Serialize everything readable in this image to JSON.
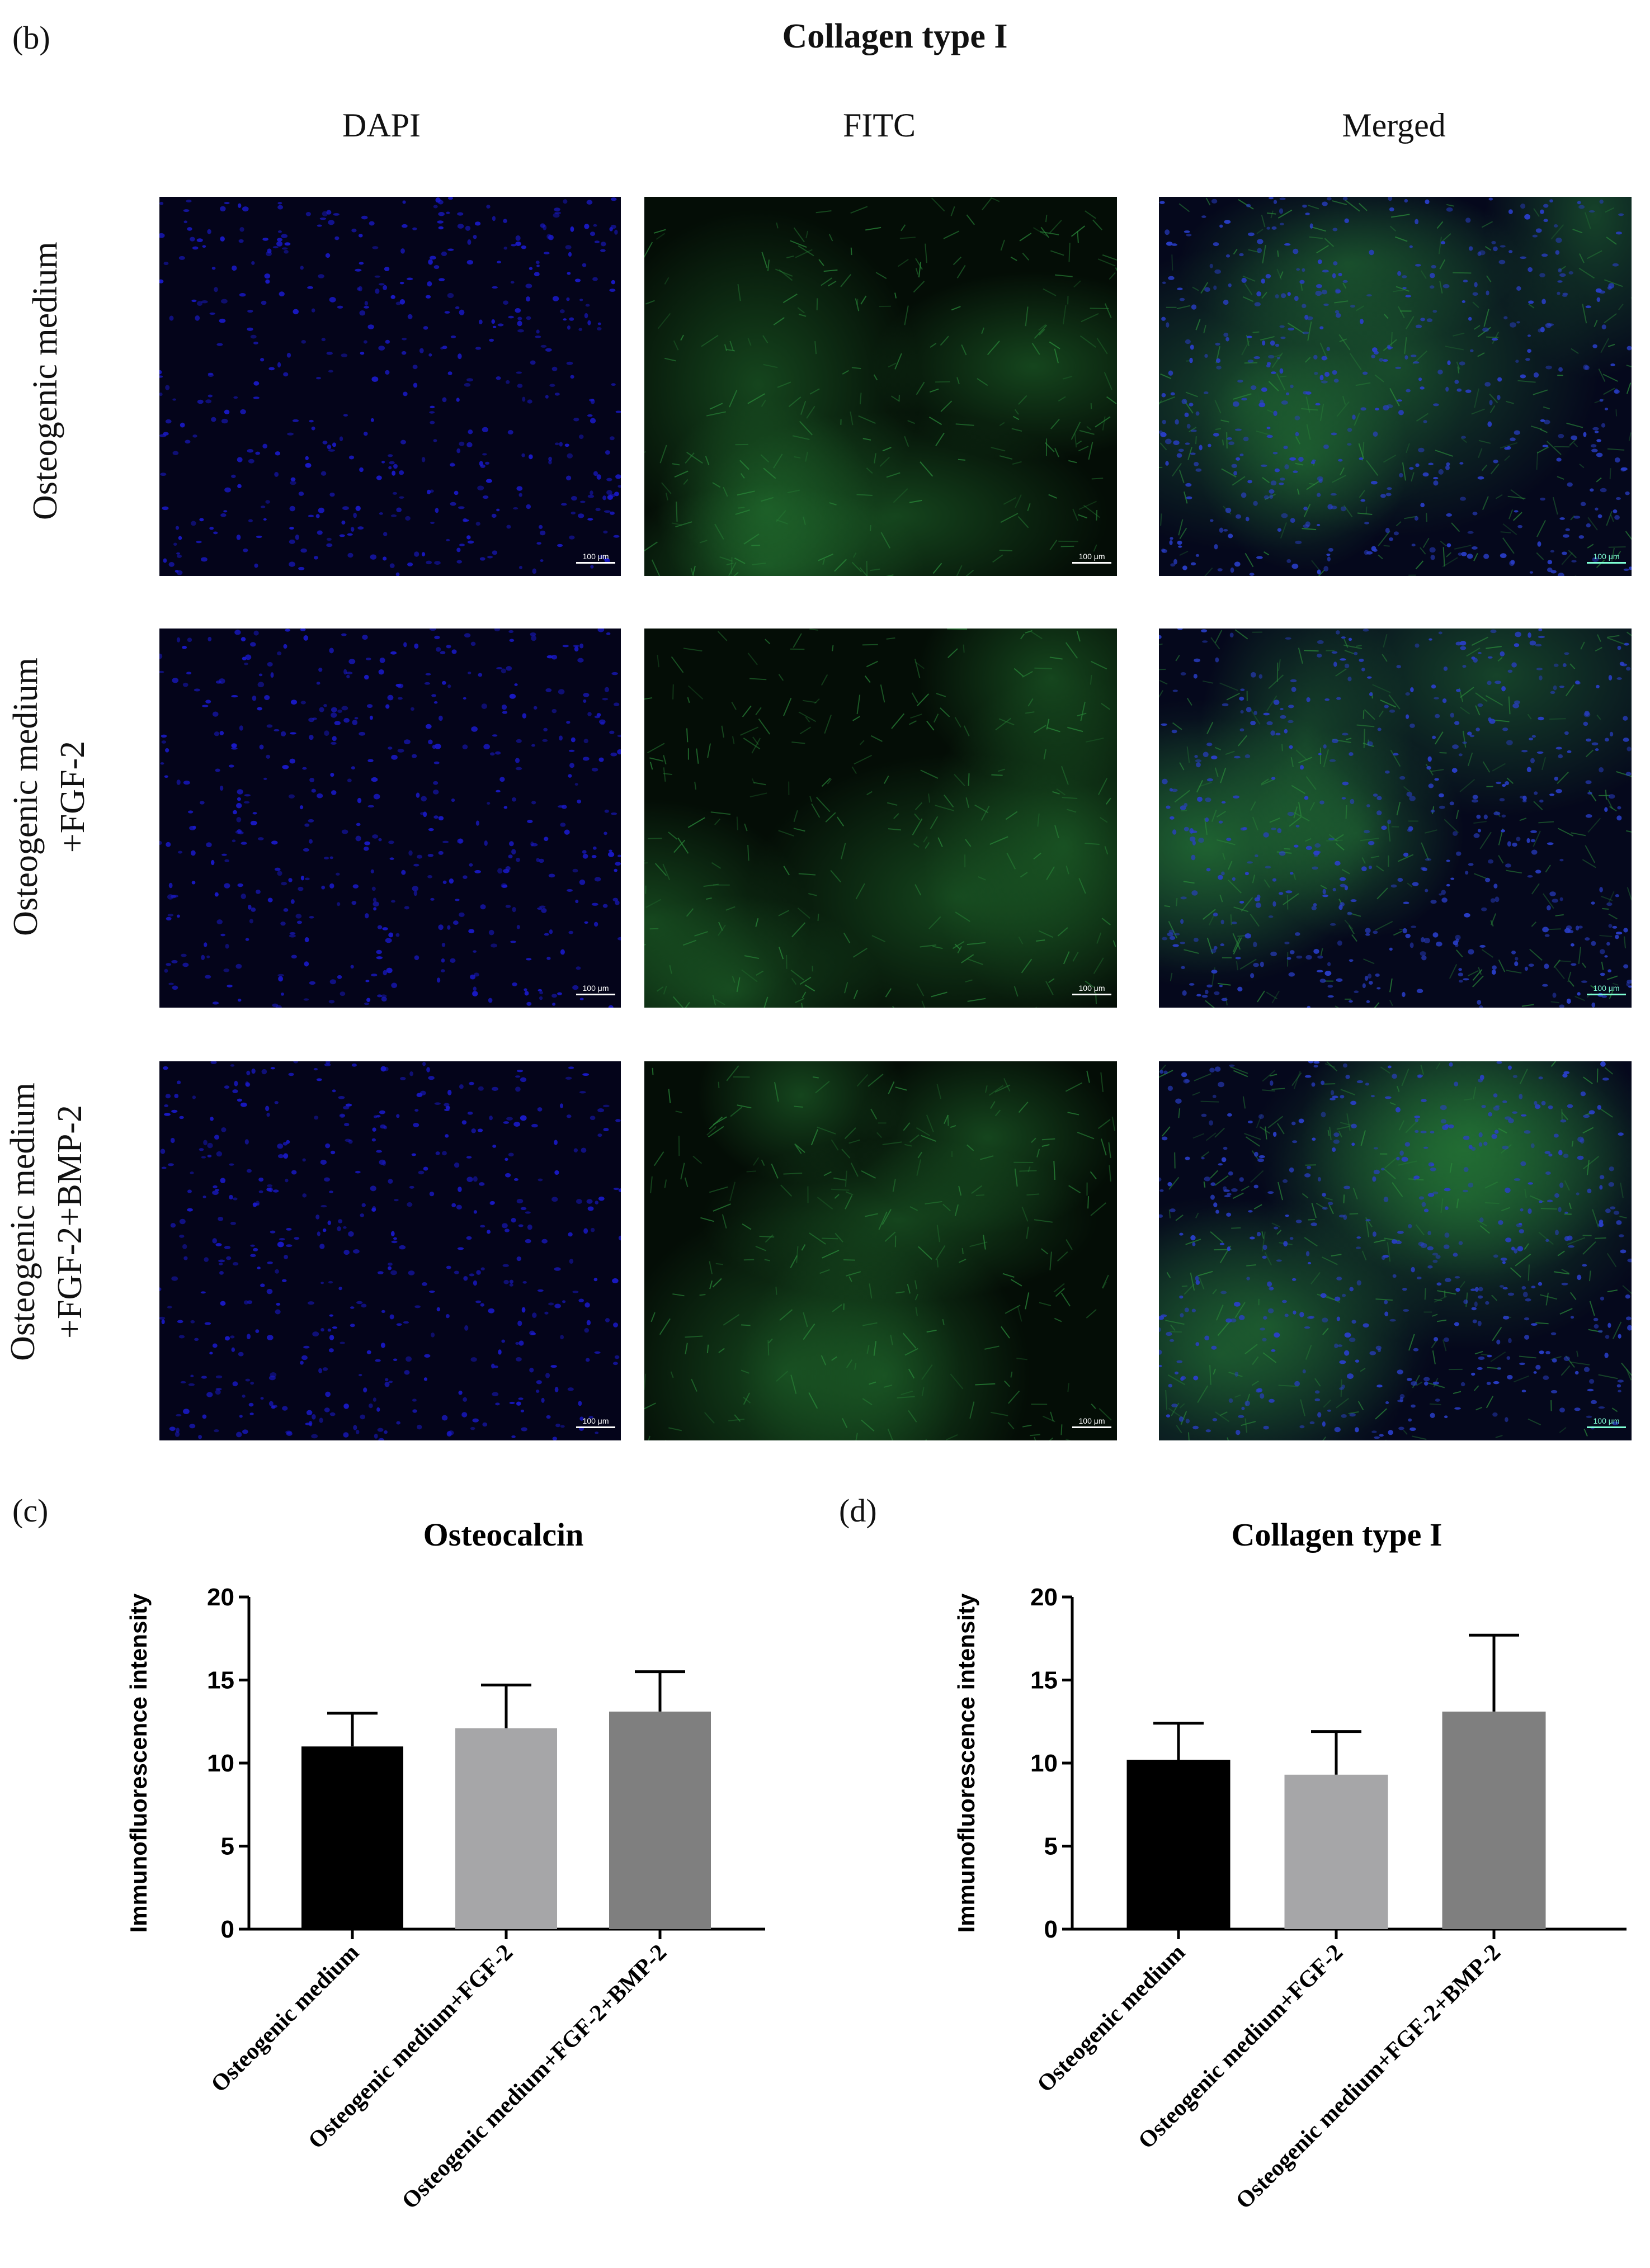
{
  "panel_b": {
    "letter": "(b)",
    "title": "Collagen type I",
    "columns": [
      "DAPI",
      "FITC",
      "Merged"
    ],
    "rows": [
      {
        "line1": "Osteogenic medium",
        "line2": ""
      },
      {
        "line1": "Osteogenic medium",
        "line2": "+FGF-2"
      },
      {
        "line1": "Osteogenic medium",
        "line2": "+FGF-2+BMP-2"
      }
    ],
    "scale_label": "100 μm",
    "colors": {
      "dapi": "#1a1acc",
      "fitc": "#2a8a3a",
      "merged_blue": "#2a3fcc",
      "merged_green": "#2f8f55",
      "scale_dapi": "#ffffff",
      "scale_fitc": "#ffffff",
      "scale_merged": "#7fffd4"
    }
  },
  "panel_c": {
    "letter": "(c)"
  },
  "panel_d": {
    "letter": "(d)"
  },
  "chart_data": [
    {
      "type": "bar",
      "title": "Osteocalcin",
      "ylabel": "Immunofluorescence intensity",
      "xlabel": "",
      "categories": [
        "Osteogenic medium",
        "Osteogenic medium+FGF-2",
        "Osteogenic medium+FGF-2+BMP-2"
      ],
      "values": [
        11.0,
        12.1,
        13.1
      ],
      "errors": [
        2.0,
        2.6,
        2.4
      ],
      "colors": [
        "#000000",
        "#a6a6a8",
        "#7f7f7f"
      ],
      "ylim": [
        0,
        20
      ],
      "yticks": [
        "0",
        "5",
        "10",
        "15",
        "20"
      ]
    },
    {
      "type": "bar",
      "title": "Collagen type I",
      "ylabel": "Immunofluorescence intensity",
      "xlabel": "",
      "categories": [
        "Osteogenic medium",
        "Osteogenic medium+FGF-2",
        "Osteogenic medium+FGF-2+BMP-2"
      ],
      "values": [
        10.2,
        9.3,
        13.1
      ],
      "errors": [
        2.2,
        2.6,
        4.6
      ],
      "colors": [
        "#000000",
        "#a6a6a8",
        "#7f7f7f"
      ],
      "ylim": [
        0,
        20
      ],
      "yticks": [
        "0",
        "5",
        "10",
        "15",
        "20"
      ]
    }
  ]
}
